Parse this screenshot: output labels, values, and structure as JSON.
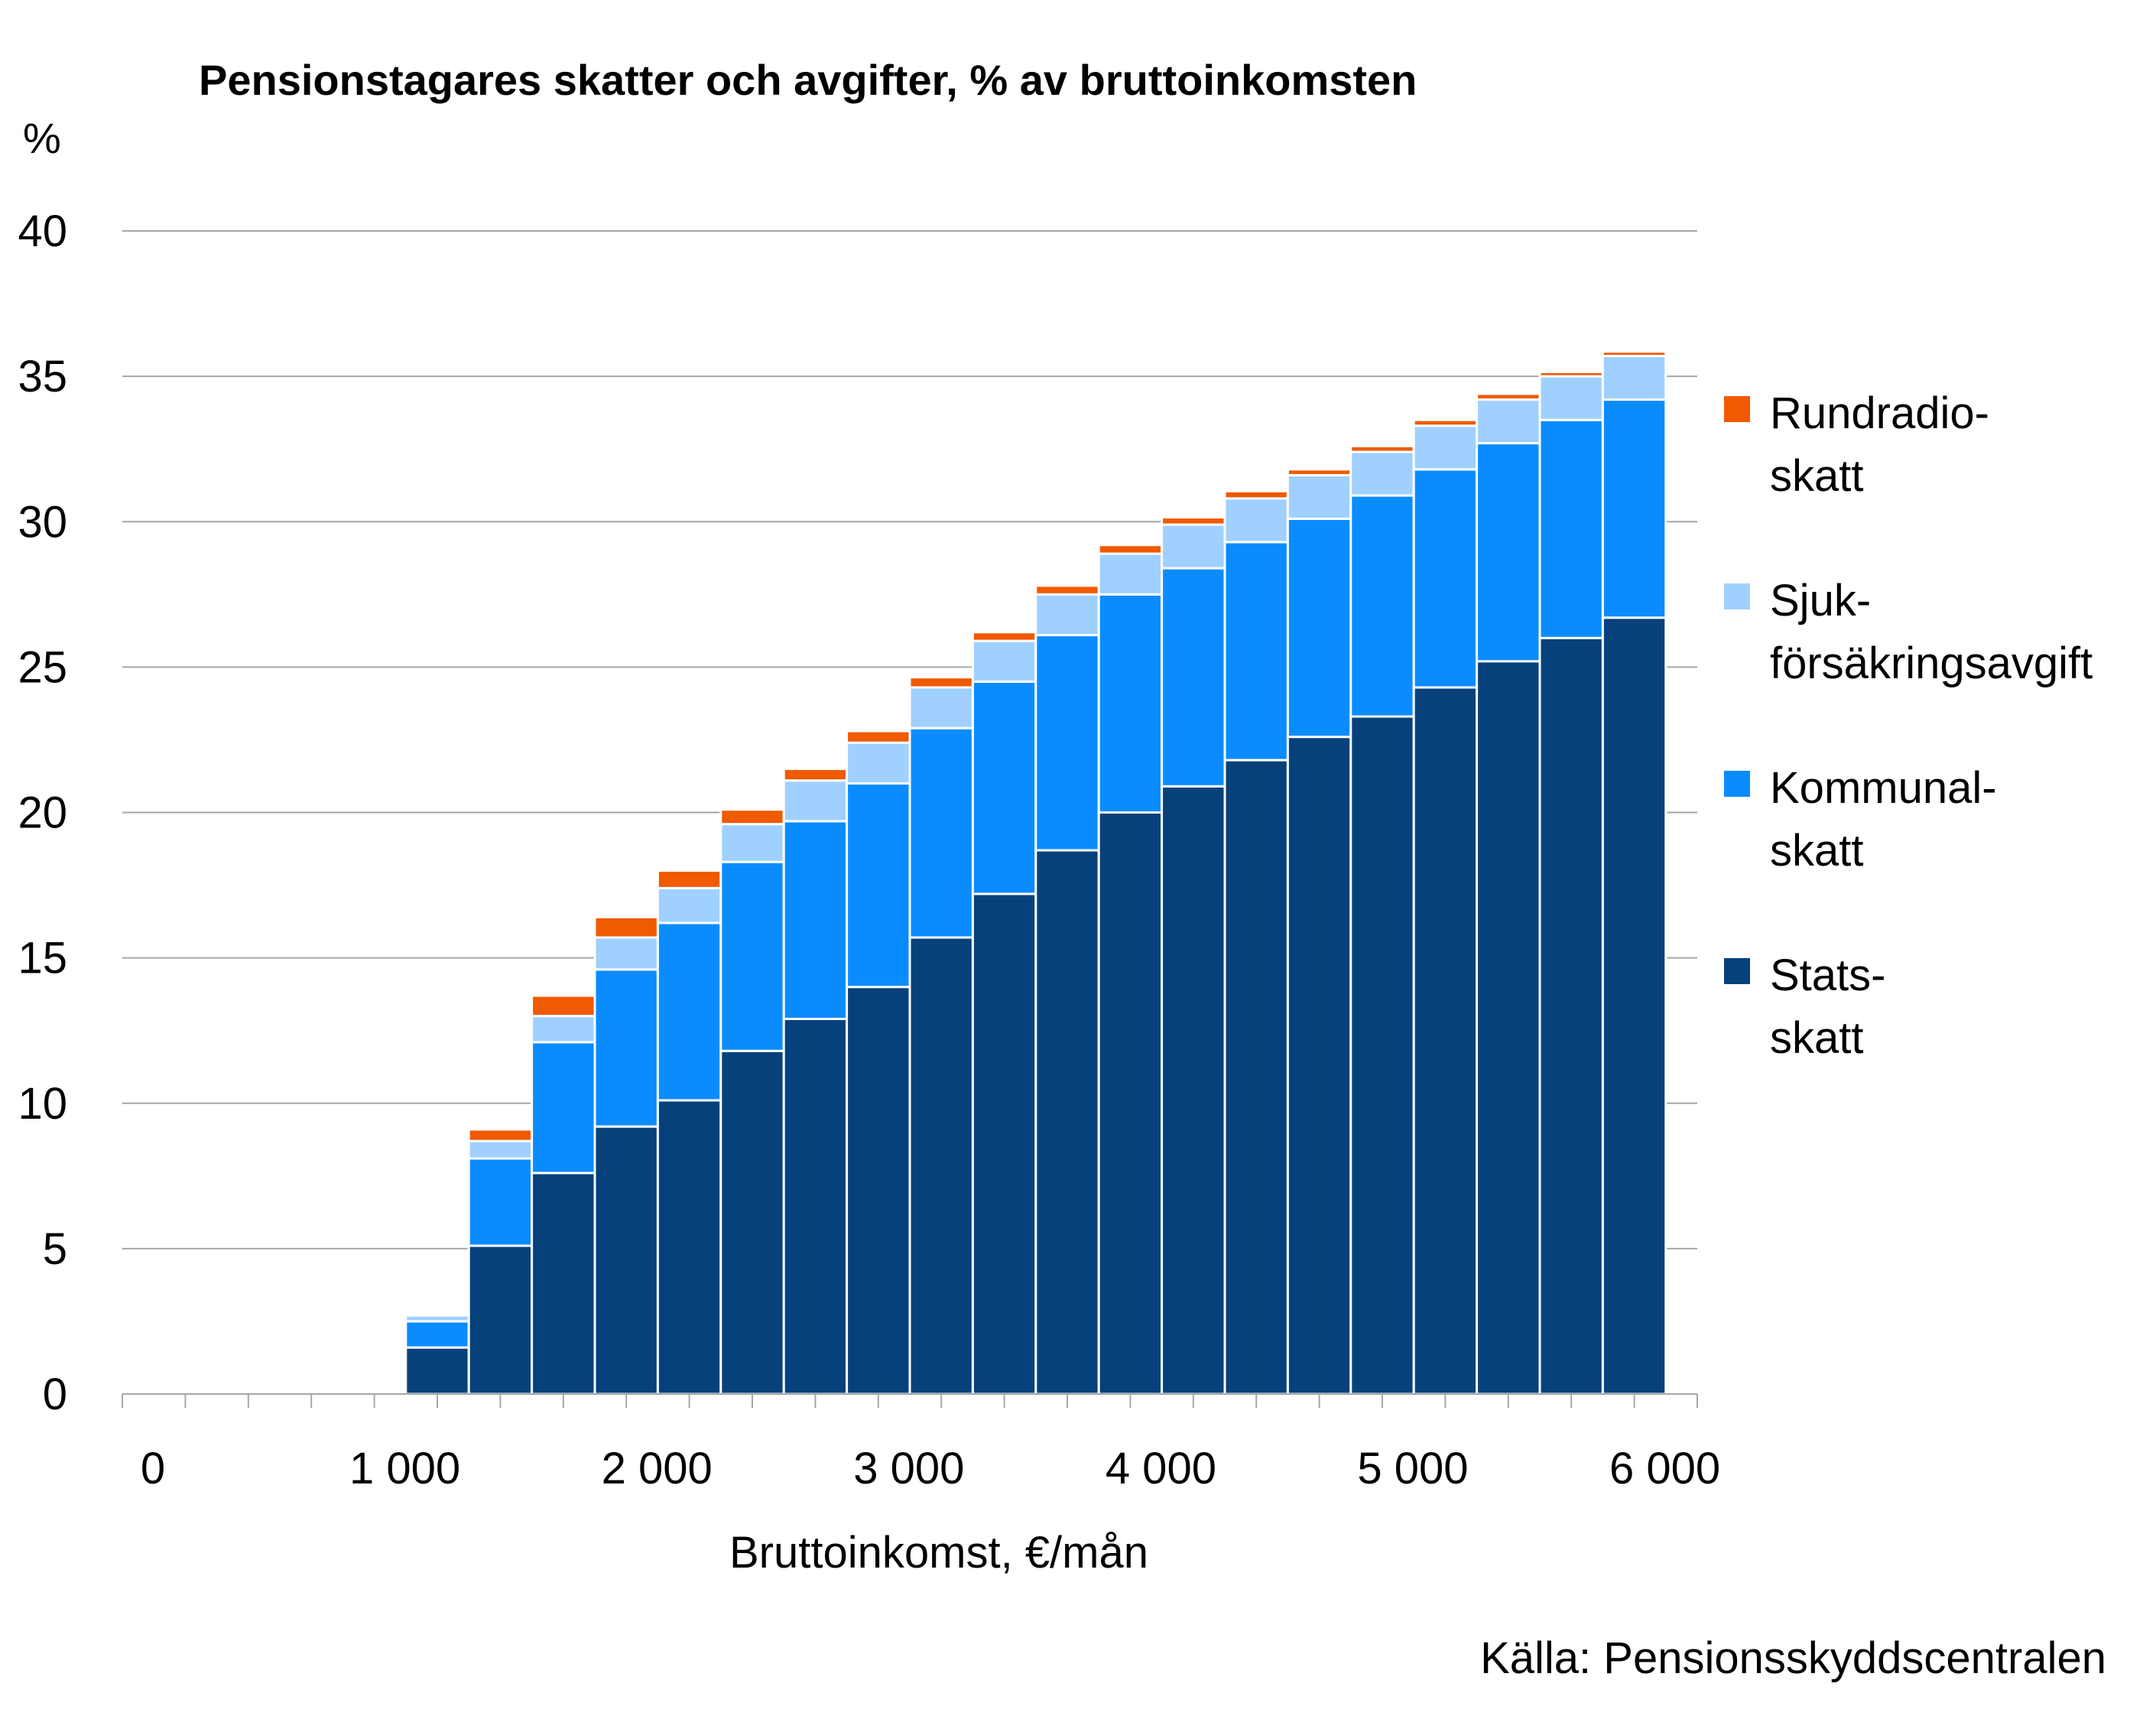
{
  "chart_data": {
    "type": "bar",
    "stacked": true,
    "title": "Pensionstagares skatter och avgifter, % av bruttoinkomsten",
    "ylabel": "%",
    "xlabel": "Bruttoinkomst, €/mån",
    "ylim": [
      0,
      40
    ],
    "yticks": [
      "0",
      "5",
      "10",
      "15",
      "20",
      "25",
      "30",
      "35",
      "40"
    ],
    "xlim": [
      0,
      6250
    ],
    "xticks": [
      {
        "value": 0,
        "label": "0"
      },
      {
        "value": 1000,
        "label": "1 000"
      },
      {
        "value": 2000,
        "label": "2 000"
      },
      {
        "value": 3000,
        "label": "3 000"
      },
      {
        "value": 4000,
        "label": "4 000"
      },
      {
        "value": 5000,
        "label": "5 000"
      },
      {
        "value": 6000,
        "label": "6 000"
      }
    ],
    "grid": true,
    "legend": "right",
    "x": [
      1250,
      1500,
      1750,
      2000,
      2250,
      2500,
      2750,
      3000,
      3250,
      3500,
      3750,
      4000,
      4250,
      4500,
      4750,
      5000,
      5250,
      5500,
      5750,
      6000
    ],
    "series": [
      {
        "name": "Stats-\nskatt",
        "color": "#06417b",
        "values": [
          1.6,
          5.1,
          7.6,
          9.2,
          10.1,
          11.8,
          12.9,
          14.0,
          15.7,
          17.2,
          18.7,
          20.0,
          20.9,
          21.8,
          22.6,
          23.3,
          24.3,
          25.2,
          26.0,
          26.7
        ]
      },
      {
        "name": "Kommunal-\nskatt",
        "color": "#0a8cff",
        "values": [
          0.9,
          3.0,
          4.5,
          5.4,
          6.1,
          6.5,
          6.8,
          7.0,
          7.2,
          7.3,
          7.4,
          7.5,
          7.5,
          7.5,
          7.5,
          7.6,
          7.5,
          7.5,
          7.5,
          7.5
        ]
      },
      {
        "name": "Sjuk-\nförsäkringsavgift",
        "color": "#a0d0ff",
        "values": [
          0.2,
          0.6,
          0.9,
          1.1,
          1.2,
          1.3,
          1.4,
          1.4,
          1.4,
          1.4,
          1.4,
          1.4,
          1.5,
          1.5,
          1.5,
          1.5,
          1.5,
          1.5,
          1.5,
          1.5
        ]
      },
      {
        "name": "Rundradio-\nskatt",
        "color": "#f05a00",
        "values": [
          0.0,
          0.4,
          0.7,
          0.7,
          0.6,
          0.5,
          0.4,
          0.4,
          0.35,
          0.3,
          0.3,
          0.3,
          0.25,
          0.25,
          0.2,
          0.2,
          0.2,
          0.2,
          0.15,
          0.15
        ]
      }
    ],
    "legend_order": [
      3,
      2,
      1,
      0
    ]
  },
  "source": "Källa: Pensionsskyddscentralen"
}
